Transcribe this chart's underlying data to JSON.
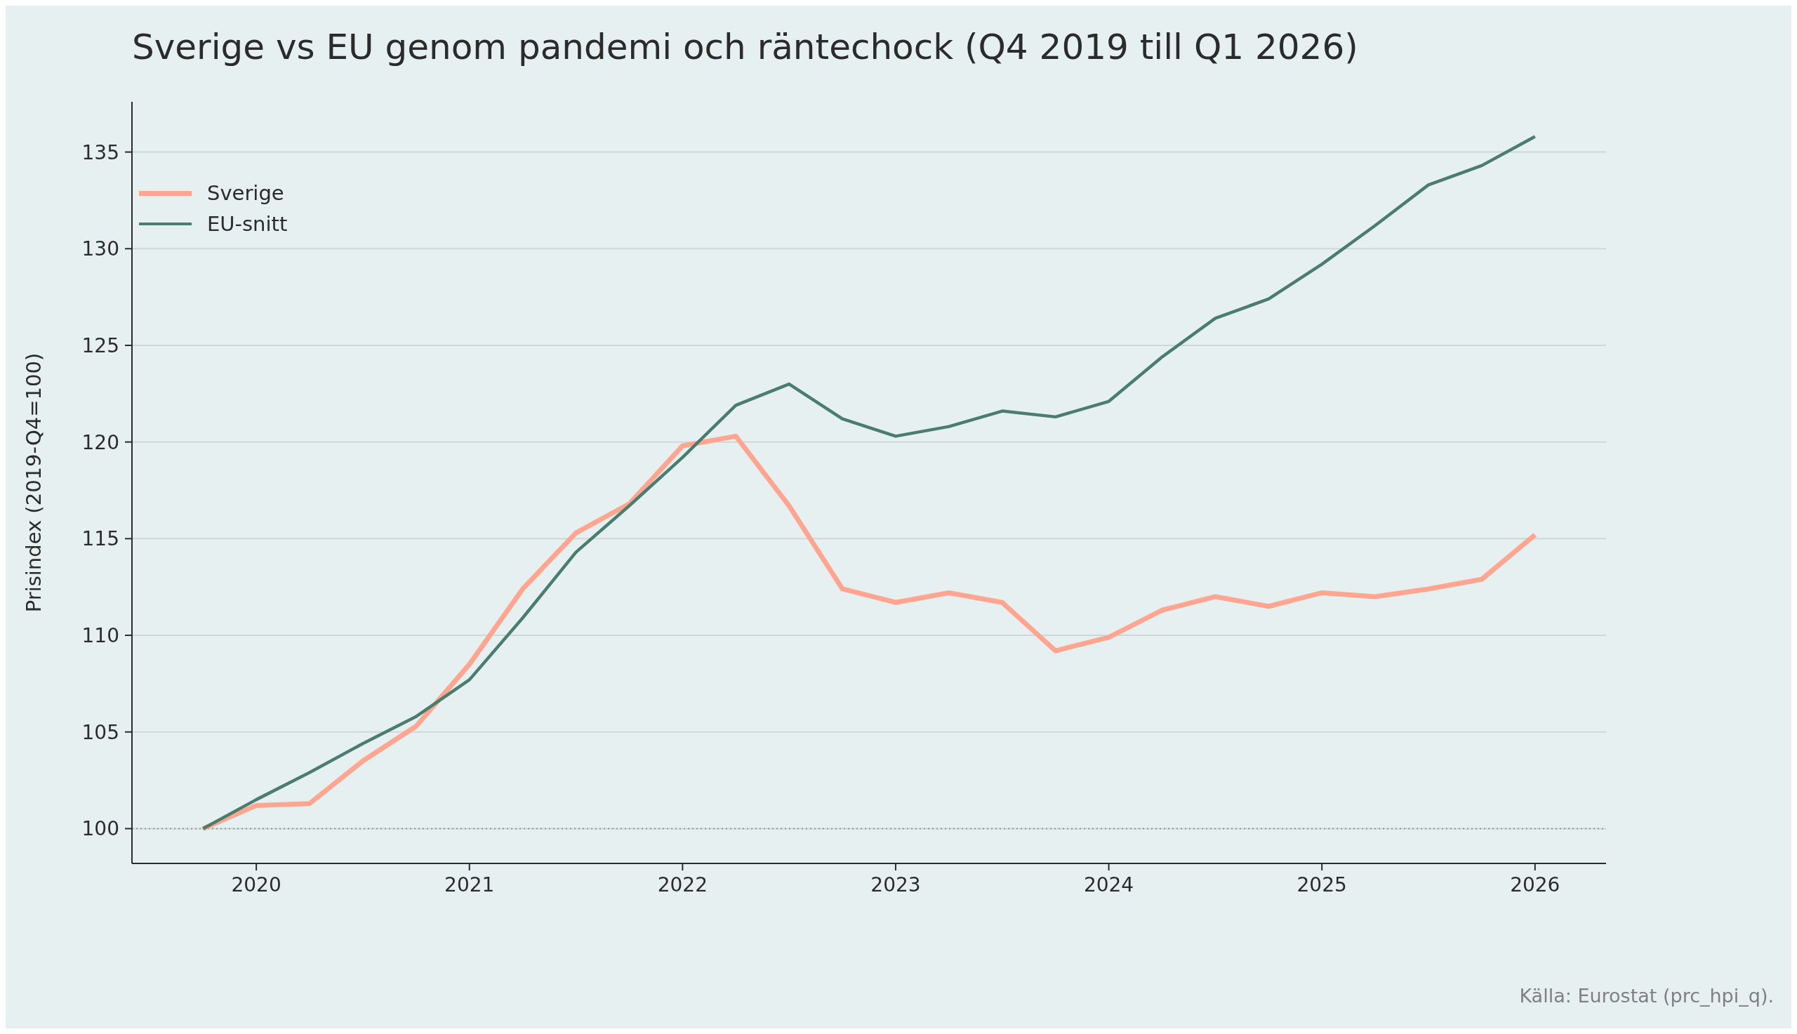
{
  "chart_data": {
    "type": "line",
    "title": "Sverige vs EU genom pandemi och räntechock (Q4 2019 till Q1 2026)",
    "ylabel": "Prisindex (2019-Q4=100)",
    "x": [
      "2019-10",
      "2020-01",
      "2020-04",
      "2020-07",
      "2020-10",
      "2021-01",
      "2021-04",
      "2021-07",
      "2021-10",
      "2022-01",
      "2022-04",
      "2022-07",
      "2022-10",
      "2023-01",
      "2023-04",
      "2023-07",
      "2023-10",
      "2024-01",
      "2024-04",
      "2024-07",
      "2024-10",
      "2025-01",
      "2025-04",
      "2025-07",
      "2025-10",
      "2026-01"
    ],
    "series": [
      {
        "name": "Sverige",
        "color": "#ffa590",
        "values": [
          100,
          101.2,
          101.3,
          103.5,
          105.3,
          108.5,
          112.4,
          115.3,
          116.8,
          119.8,
          120.3,
          116.7,
          112.4,
          111.7,
          112.2,
          111.7,
          109.2,
          109.9,
          111.3,
          112.0,
          111.5,
          112.2,
          112.0,
          112.4,
          112.9,
          115.2
        ]
      },
      {
        "name": "EU-snitt",
        "color": "#4a7c6f",
        "values": [
          100,
          101.5,
          102.9,
          104.4,
          105.8,
          107.7,
          110.9,
          114.3,
          116.7,
          119.2,
          121.9,
          123.0,
          121.2,
          120.3,
          120.8,
          121.6,
          121.3,
          122.1,
          124.4,
          126.4,
          127.4,
          129.2,
          131.2,
          133.3,
          134.3,
          135.8
        ]
      }
    ],
    "xlim": [
      "2019-06",
      "2026-05"
    ],
    "xticks": [
      "2020",
      "2021",
      "2022",
      "2023",
      "2024",
      "2025",
      "2026"
    ],
    "ylim": [
      98.2,
      137.6
    ],
    "yticks": [
      100,
      105,
      110,
      115,
      120,
      125,
      130,
      135
    ],
    "grid": "y",
    "legend": "top left",
    "marker": "none",
    "ref_lines": [
      {
        "axis": "y",
        "value": 100,
        "color": "#999999",
        "line_style": "dotted"
      }
    ],
    "annotations": [
      "Källa: Eurostat (prc_hpi_q)."
    ]
  }
}
